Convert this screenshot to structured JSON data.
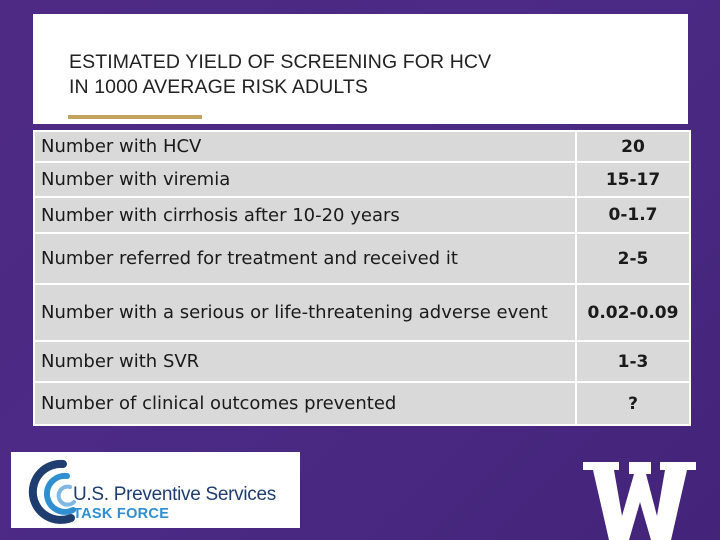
{
  "slide": {
    "title_line1": "ESTIMATED YIELD OF SCREENING FOR HCV",
    "title_line2": "IN 1000 AVERAGE RISK ADULTS"
  },
  "table": {
    "rows": [
      {
        "label": "Number with HCV",
        "value": "20"
      },
      {
        "label": "Number with viremia",
        "value": "15-17"
      },
      {
        "label": "Number with cirrhosis after 10-20 years",
        "value": "0-1.7"
      },
      {
        "label": "Number referred for treatment and received it",
        "value": "2-5"
      },
      {
        "label": "Number with a serious or life-threatening adverse event",
        "value": "0.02-0.09"
      },
      {
        "label": "Number with SVR",
        "value": "1-3"
      },
      {
        "label": "Number of clinical outcomes prevented",
        "value": "?"
      }
    ]
  },
  "logos": {
    "uspstf": {
      "line1": "U.S. Preventive Services",
      "line2": "TASK FORCE"
    },
    "uw": {
      "letter": "W",
      "color": "#ffffff"
    }
  },
  "colors": {
    "background": "#4b2a85",
    "accent": "#c4a260",
    "table_fill": "#d9d9d9",
    "uspstf_blue": "#1f3d6f",
    "uspstf_light_blue": "#2f8fd0"
  }
}
